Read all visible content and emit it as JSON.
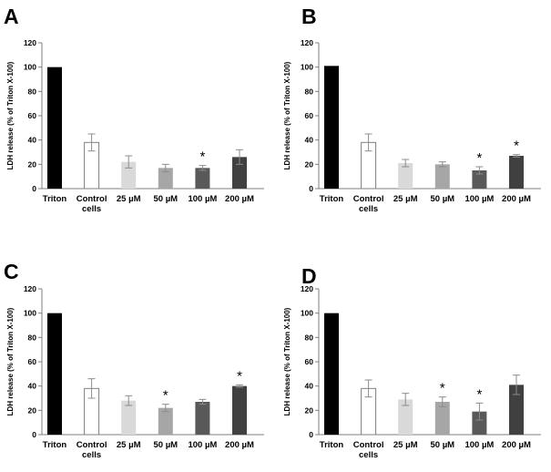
{
  "chart_data": [
    {
      "type": "bar",
      "panel_label": "A",
      "ylabel": "LDH release (% of Triton X-100)",
      "ylim": [
        0,
        120
      ],
      "yticks": [
        "0",
        "20",
        "40",
        "60",
        "80",
        "100",
        "120"
      ],
      "categories": [
        [
          "Triton"
        ],
        [
          "Control",
          "cells"
        ],
        [
          "25 µM"
        ],
        [
          "50 µM"
        ],
        [
          "100 µM"
        ],
        [
          "200 µM"
        ]
      ],
      "values": [
        100,
        38,
        22,
        17,
        17,
        26
      ],
      "errors": [
        0,
        7,
        5,
        3,
        2,
        6
      ],
      "significant": [
        false,
        false,
        false,
        false,
        true,
        false
      ],
      "marker": "*",
      "bar_colors": [
        "#000000",
        "#ffffff",
        "#d9d9d9",
        "#a6a6a6",
        "#595959",
        "#404040"
      ]
    },
    {
      "type": "bar",
      "panel_label": "B",
      "ylabel": "LDH release (% of Triton X-100)",
      "ylim": [
        0,
        120
      ],
      "yticks": [
        "0",
        "20",
        "40",
        "60",
        "80",
        "100",
        "120"
      ],
      "categories": [
        [
          "Triton"
        ],
        [
          "Control",
          "cells"
        ],
        [
          "25 µM"
        ],
        [
          "50 µM"
        ],
        [
          "100 µM"
        ],
        [
          "200 µM"
        ]
      ],
      "values": [
        101,
        38,
        21,
        20,
        15,
        27
      ],
      "errors": [
        0,
        7,
        3,
        2,
        3,
        1
      ],
      "significant": [
        false,
        false,
        false,
        false,
        true,
        true
      ],
      "marker": "*",
      "bar_colors": [
        "#000000",
        "#ffffff",
        "#d9d9d9",
        "#a6a6a6",
        "#595959",
        "#404040"
      ]
    },
    {
      "type": "bar",
      "panel_label": "C",
      "ylabel": "LDH release (% of Triton X-100)",
      "ylim": [
        0,
        120
      ],
      "yticks": [
        "0",
        "20",
        "40",
        "60",
        "80",
        "100",
        "120"
      ],
      "categories": [
        [
          "Triton"
        ],
        [
          "Control",
          "cells"
        ],
        [
          "25 µM"
        ],
        [
          "50 µM"
        ],
        [
          "100 µM"
        ],
        [
          "200 µM"
        ]
      ],
      "values": [
        100,
        38,
        28,
        22,
        27,
        40
      ],
      "errors": [
        0,
        8,
        4,
        3,
        2,
        1
      ],
      "significant": [
        false,
        false,
        false,
        true,
        false,
        true
      ],
      "marker": "*",
      "bar_colors": [
        "#000000",
        "#ffffff",
        "#d9d9d9",
        "#a6a6a6",
        "#595959",
        "#404040"
      ]
    },
    {
      "type": "bar",
      "panel_label": "D",
      "ylabel": "LDH release (% of Triton X-100)",
      "ylim": [
        0,
        120
      ],
      "yticks": [
        "0",
        "20",
        "40",
        "60",
        "80",
        "100",
        "120"
      ],
      "categories": [
        [
          "Triton"
        ],
        [
          "Control",
          "cells"
        ],
        [
          "25 µM"
        ],
        [
          "50 µM"
        ],
        [
          "100 µM"
        ],
        [
          "200 µM"
        ]
      ],
      "values": [
        100,
        38,
        29,
        27,
        19,
        41
      ],
      "errors": [
        0,
        7,
        5,
        4,
        7,
        8
      ],
      "significant": [
        false,
        false,
        false,
        true,
        true,
        false
      ],
      "marker": "*",
      "bar_colors": [
        "#000000",
        "#ffffff",
        "#d9d9d9",
        "#a6a6a6",
        "#595959",
        "#404040"
      ]
    }
  ]
}
